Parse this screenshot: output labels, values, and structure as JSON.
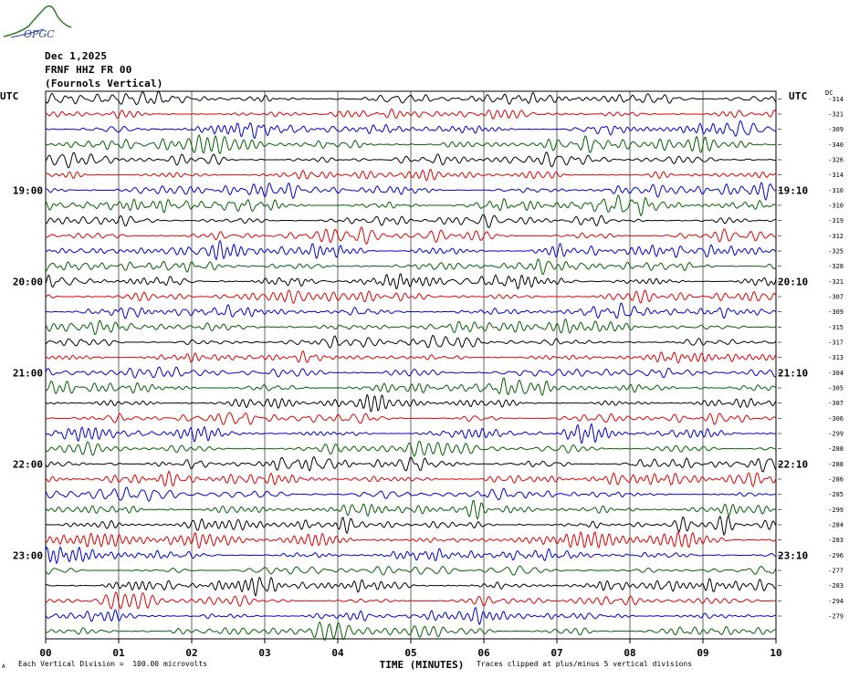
{
  "header": {
    "logo_text": "OPGC",
    "date": "Dec 1,2025",
    "station": "FRNF HHZ FR 00",
    "location": "(Fournols Vertical)",
    "utc_left": "UTC",
    "utc_right": "UTC",
    "dc_label": "DC"
  },
  "footer": {
    "scale_note": "Each Vertical Division =  100.00 microvolts",
    "clip_note": "Traces clipped at plus/minus 5 vertical divisions",
    "corner_mark": "A"
  },
  "colors": {
    "trace_cycle": [
      "#000000",
      "#e00000",
      "#0000d0",
      "#006000"
    ],
    "grid": "#000000",
    "logo": "#2a7a2a"
  },
  "chart_data": {
    "type": "line",
    "title": "",
    "xlabel": "TIME (MINUTES)",
    "ylabel": "",
    "xlim": [
      0,
      10
    ],
    "x_tick_labels": [
      "00",
      "01",
      "02",
      "03",
      "04",
      "05",
      "06",
      "07",
      "08",
      "09",
      "10"
    ],
    "left_time_labels": [
      {
        "row": 6,
        "label": "19:00"
      },
      {
        "row": 12,
        "label": "20:00"
      },
      {
        "row": 18,
        "label": "21:00"
      },
      {
        "row": 24,
        "label": "22:00"
      },
      {
        "row": 30,
        "label": "23:00"
      }
    ],
    "right_time_labels": [
      {
        "row": 6,
        "label": "19:10"
      },
      {
        "row": 12,
        "label": "20:10"
      },
      {
        "row": 18,
        "label": "21:10"
      },
      {
        "row": 24,
        "label": "22:10"
      },
      {
        "row": 30,
        "label": "23:10"
      }
    ],
    "trace_minutes_per_row": 10,
    "dc_offsets": [
      -314,
      -321,
      -309,
      -340,
      -326,
      -314,
      -310,
      -310,
      -319,
      -312,
      -325,
      -328,
      -321,
      -307,
      -309,
      -315,
      -317,
      -313,
      -304,
      -305,
      -307,
      -306,
      -299,
      -288,
      -288,
      -286,
      -285,
      -299,
      -284,
      -283,
      -296,
      -277,
      -283,
      -294,
      -279
    ],
    "series": [
      {
        "name": "FRNF HHZ FR 00",
        "row_count": 36
      }
    ]
  }
}
